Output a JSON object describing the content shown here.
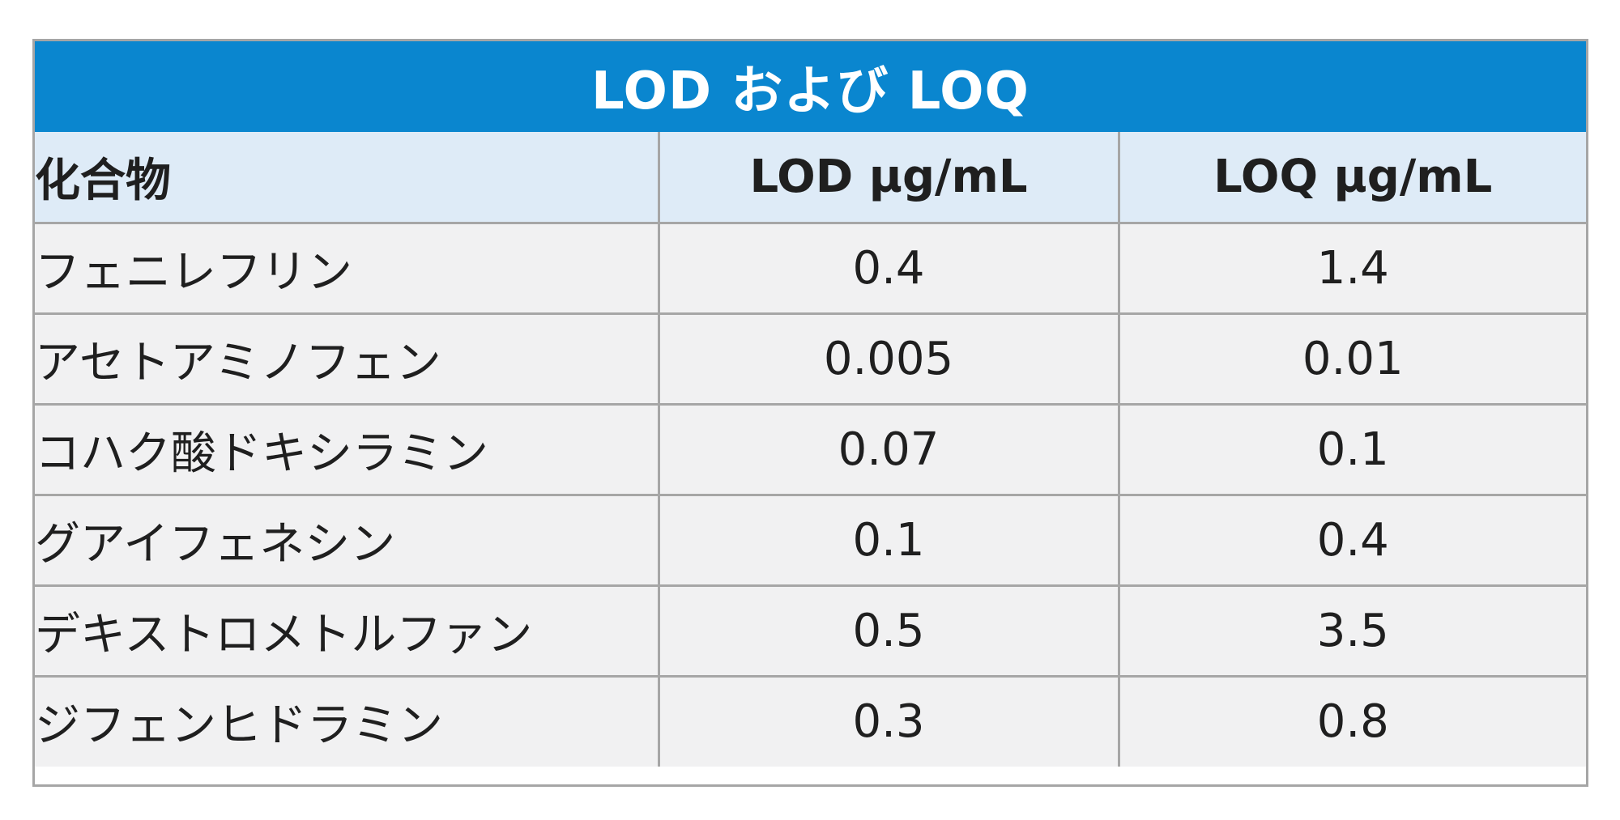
{
  "table": {
    "title": "LOD および LOQ",
    "headers": [
      "化合物",
      "LOD µg/mL",
      "LOQ µg/mL"
    ],
    "rows": [
      [
        "フェニレフリン",
        "0.4",
        "1.4"
      ],
      [
        "アセトアミノフェン",
        "0.005",
        "0.01"
      ],
      [
        "コハク酸ドキシラミン",
        "0.07",
        "0.1"
      ],
      [
        "グアイフェネシン",
        "0.1",
        "0.4"
      ],
      [
        "デキストロメトルファン",
        "0.5",
        "3.5"
      ],
      [
        "ジフェンヒドラミン",
        "0.3",
        "0.8"
      ]
    ]
  },
  "colors": {
    "title_background": "#0a86cf",
    "header_background": "#deebf7",
    "row_background": "#f1f1f2",
    "border": "#a6a6a6"
  }
}
